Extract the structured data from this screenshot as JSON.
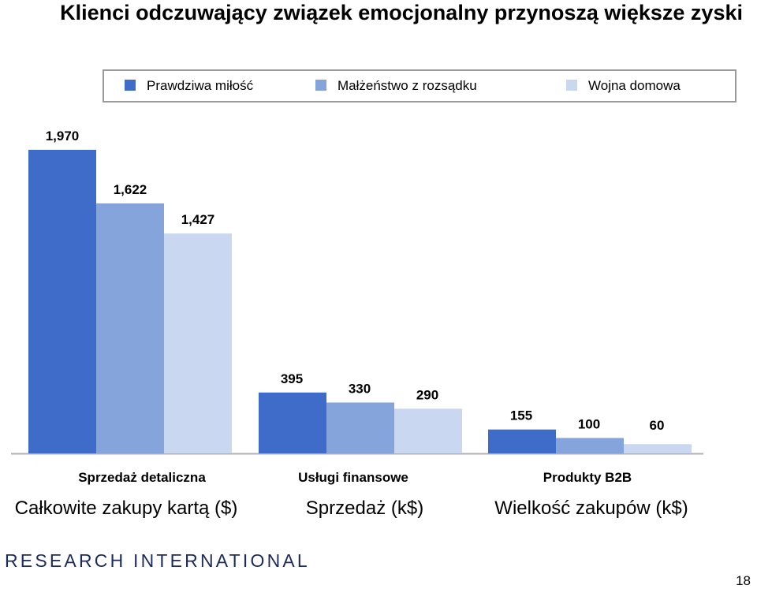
{
  "title": "Klienci odczuwający związek emocjonalny przynoszą większe zyski",
  "legend": [
    {
      "label": "Prawdziwa miłość",
      "color": "#3e6cc8"
    },
    {
      "label": "Małżeństwo z rozsądku",
      "color": "#85a4dc"
    },
    {
      "label": "Wojna domowa",
      "color": "#c9d7f0"
    }
  ],
  "chart_data": [
    {
      "type": "bar",
      "title": "",
      "categories": [
        "Sprzedaż detaliczna"
      ],
      "xlabel": "Całkowite zakupy kartą ($)",
      "series": [
        {
          "name": "Prawdziwa miłość",
          "values": [
            1970
          ]
        },
        {
          "name": "Małżeństwo z rozsądku",
          "values": [
            1622
          ]
        },
        {
          "name": "Wojna domowa",
          "values": [
            1427
          ]
        }
      ],
      "labels": [
        "1,970",
        "1,622",
        "1,427"
      ]
    },
    {
      "type": "bar",
      "title": "",
      "categories": [
        "Usługi finansowe"
      ],
      "xlabel": "Sprzedaż (k$)",
      "series": [
        {
          "name": "Prawdziwa miłość",
          "values": [
            395
          ]
        },
        {
          "name": "Małżeństwo z rozsądku",
          "values": [
            330
          ]
        },
        {
          "name": "Wojna domowa",
          "values": [
            290
          ]
        }
      ],
      "labels": [
        "395",
        "330",
        "290"
      ]
    },
    {
      "type": "bar",
      "title": "",
      "categories": [
        "Produkty B2B"
      ],
      "xlabel": "Wielkość zakupów (k$)",
      "series": [
        {
          "name": "Prawdziwa miłość",
          "values": [
            155
          ]
        },
        {
          "name": "Małżeństwo z rozsądku",
          "values": [
            100
          ]
        },
        {
          "name": "Wojna domowa",
          "values": [
            60
          ]
        }
      ],
      "labels": [
        "155",
        "100",
        "60"
      ]
    }
  ],
  "footer": {
    "logo": "RESEARCH INTERNATIONAL",
    "page": "18"
  }
}
